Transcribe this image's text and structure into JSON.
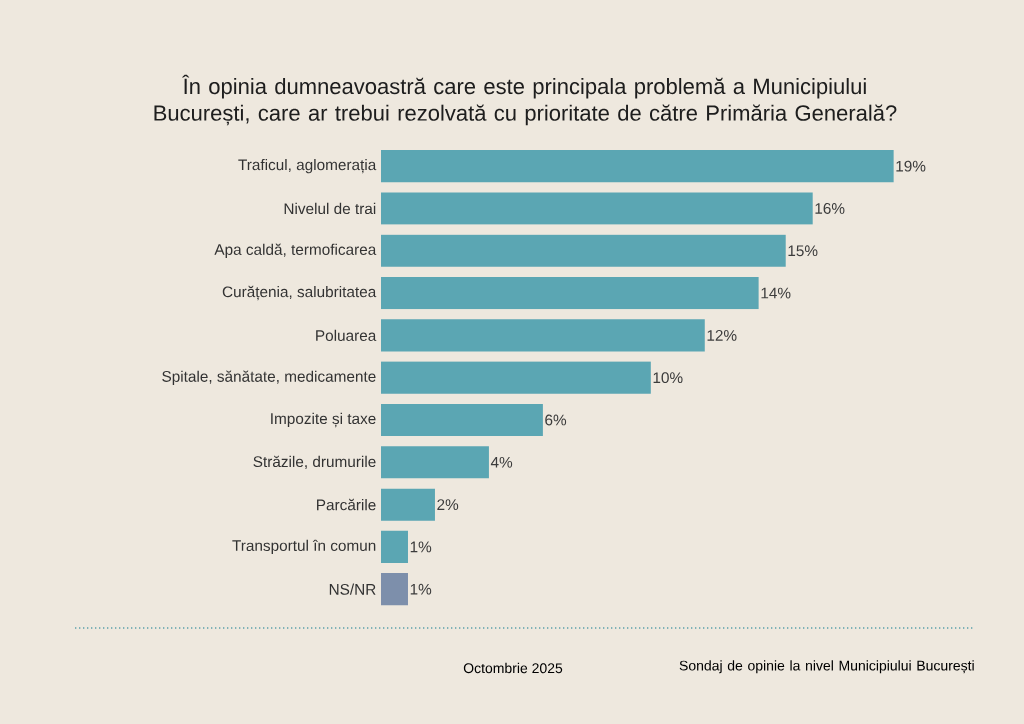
{
  "chart_data": {
    "type": "bar",
    "orientation": "horizontal",
    "title": "În opinia dumneavoastră care este principala problemă a Municipiului București, care ar trebui rezolvată cu prioritate de către Primăria Generală?",
    "categories": [
      "Traficul, aglomerația",
      "Nivelul de trai",
      "Apa caldă, termoficarea",
      "Curățenia, salubritatea",
      "Poluarea",
      "Spitale, sănătate, medicamente",
      "Impozite și taxe",
      "Străzile, drumurile",
      "Parcările",
      "Transportul în comun",
      "NS/NR"
    ],
    "values": [
      19,
      16,
      15,
      14,
      12,
      10,
      6,
      4,
      2,
      1,
      1
    ],
    "value_labels": [
      "19%",
      "16%",
      "15%",
      "14%",
      "12%",
      "10%",
      "6%",
      "4%",
      "2%",
      "1%",
      "1%"
    ],
    "colors": [
      "#5ba6b3",
      "#5ba6b3",
      "#5ba6b3",
      "#5ba6b3",
      "#5ba6b3",
      "#5ba6b3",
      "#5ba6b3",
      "#5ba6b3",
      "#5ba6b3",
      "#5ba6b3",
      "#7d8fab"
    ],
    "annotations": [
      "Octombrie 2025",
      "Sondaj de opinie la nivel Municipiului București"
    ]
  }
}
